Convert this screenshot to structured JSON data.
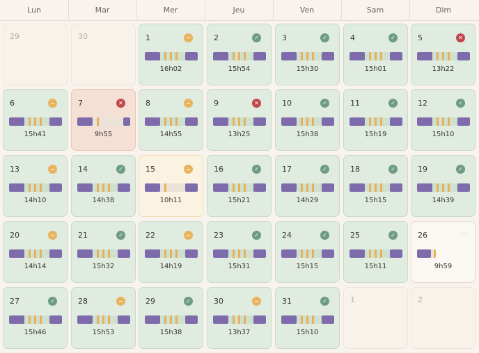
{
  "weekdays": [
    "Lun",
    "Mar",
    "Mer",
    "Jeu",
    "Ven",
    "Sam",
    "Dim"
  ],
  "colors": {
    "ok_bg": "#e0ece0",
    "bad_bg": "#f5e0d5",
    "short_bg": "#fbf3e2",
    "bar_block": "#7e6bab",
    "bar_tick": "#e7b15c",
    "icon_ok": "#6e9b87",
    "icon_warn": "#e8b45e",
    "icon_bad": "#c0484d"
  },
  "days": [
    {
      "num": "29",
      "state": "empty"
    },
    {
      "num": "30",
      "state": "empty"
    },
    {
      "num": "1",
      "state": "ok",
      "icon": "minus-icon",
      "duration": "16h02",
      "coverage": 1.0,
      "ticks": 3
    },
    {
      "num": "2",
      "state": "ok",
      "icon": "check-icon",
      "duration": "15h54",
      "coverage": 1.0,
      "ticks": 3
    },
    {
      "num": "3",
      "state": "ok",
      "icon": "check-icon",
      "duration": "15h30",
      "coverage": 1.0,
      "ticks": 3
    },
    {
      "num": "4",
      "state": "ok",
      "icon": "check-icon",
      "duration": "15h01",
      "coverage": 1.0,
      "ticks": 3
    },
    {
      "num": "5",
      "state": "ok",
      "icon": "x-icon",
      "duration": "13h22",
      "coverage": 1.0,
      "ticks": 3
    },
    {
      "num": "6",
      "state": "ok",
      "icon": "minus-icon",
      "duration": "15h41",
      "coverage": 1.0,
      "ticks": 3
    },
    {
      "num": "7",
      "state": "bad",
      "icon": "x-icon",
      "duration": "9h55",
      "coverage": 1.0,
      "ticks": 1
    },
    {
      "num": "8",
      "state": "ok",
      "icon": "minus-icon",
      "duration": "14h55",
      "coverage": 1.0,
      "ticks": 3
    },
    {
      "num": "9",
      "state": "ok",
      "icon": "x-icon",
      "duration": "13h25",
      "coverage": 1.0,
      "ticks": 3
    },
    {
      "num": "10",
      "state": "ok",
      "icon": "check-icon",
      "duration": "15h38",
      "coverage": 1.0,
      "ticks": 3
    },
    {
      "num": "11",
      "state": "ok",
      "icon": "check-icon",
      "duration": "15h19",
      "coverage": 1.0,
      "ticks": 3
    },
    {
      "num": "12",
      "state": "ok",
      "icon": "check-icon",
      "duration": "15h10",
      "coverage": 1.0,
      "ticks": 3
    },
    {
      "num": "13",
      "state": "ok",
      "icon": "minus-icon",
      "duration": "14h10",
      "coverage": 1.0,
      "ticks": 3
    },
    {
      "num": "14",
      "state": "ok",
      "icon": "check-icon",
      "duration": "14h38",
      "coverage": 1.0,
      "ticks": 3
    },
    {
      "num": "15",
      "state": "short",
      "icon": "minus-icon",
      "duration": "10h11",
      "coverage": 1.0,
      "ticks": 1
    },
    {
      "num": "16",
      "state": "ok",
      "icon": "check-icon",
      "duration": "15h21",
      "coverage": 1.0,
      "ticks": 3
    },
    {
      "num": "17",
      "state": "ok",
      "icon": "check-icon",
      "duration": "14h29",
      "coverage": 1.0,
      "ticks": 3
    },
    {
      "num": "18",
      "state": "ok",
      "icon": "check-icon",
      "duration": "15h15",
      "coverage": 1.0,
      "ticks": 3
    },
    {
      "num": "19",
      "state": "ok",
      "icon": "check-icon",
      "duration": "14h39",
      "coverage": 1.0,
      "ticks": 3
    },
    {
      "num": "20",
      "state": "ok",
      "icon": "minus-icon",
      "duration": "14h14",
      "coverage": 1.0,
      "ticks": 3
    },
    {
      "num": "21",
      "state": "ok",
      "icon": "check-icon",
      "duration": "15h32",
      "coverage": 1.0,
      "ticks": 3
    },
    {
      "num": "22",
      "state": "ok",
      "icon": "minus-icon",
      "duration": "14h19",
      "coverage": 1.0,
      "ticks": 3
    },
    {
      "num": "23",
      "state": "ok",
      "icon": "check-icon",
      "duration": "15h31",
      "coverage": 1.0,
      "ticks": 3
    },
    {
      "num": "24",
      "state": "ok",
      "icon": "check-icon",
      "duration": "15h15",
      "coverage": 1.0,
      "ticks": 3
    },
    {
      "num": "25",
      "state": "ok",
      "icon": "check-icon",
      "duration": "15h11",
      "coverage": 1.0,
      "ticks": 3
    },
    {
      "num": "26",
      "state": "open",
      "icon": "more-icon",
      "duration": "9h59",
      "coverage": 0.35,
      "ticks": 3
    },
    {
      "num": "27",
      "state": "ok",
      "icon": "check-icon",
      "duration": "15h46",
      "coverage": 1.0,
      "ticks": 3
    },
    {
      "num": "28",
      "state": "ok",
      "icon": "minus-icon",
      "duration": "15h53",
      "coverage": 1.0,
      "ticks": 3
    },
    {
      "num": "29",
      "state": "ok",
      "icon": "check-icon",
      "duration": "15h38",
      "coverage": 1.0,
      "ticks": 3
    },
    {
      "num": "30",
      "state": "ok",
      "icon": "minus-icon",
      "duration": "13h37",
      "coverage": 1.0,
      "ticks": 3
    },
    {
      "num": "31",
      "state": "ok",
      "icon": "check-icon",
      "duration": "15h10",
      "coverage": 1.0,
      "ticks": 3
    },
    {
      "num": "1",
      "state": "empty"
    },
    {
      "num": "2",
      "state": "empty"
    }
  ]
}
